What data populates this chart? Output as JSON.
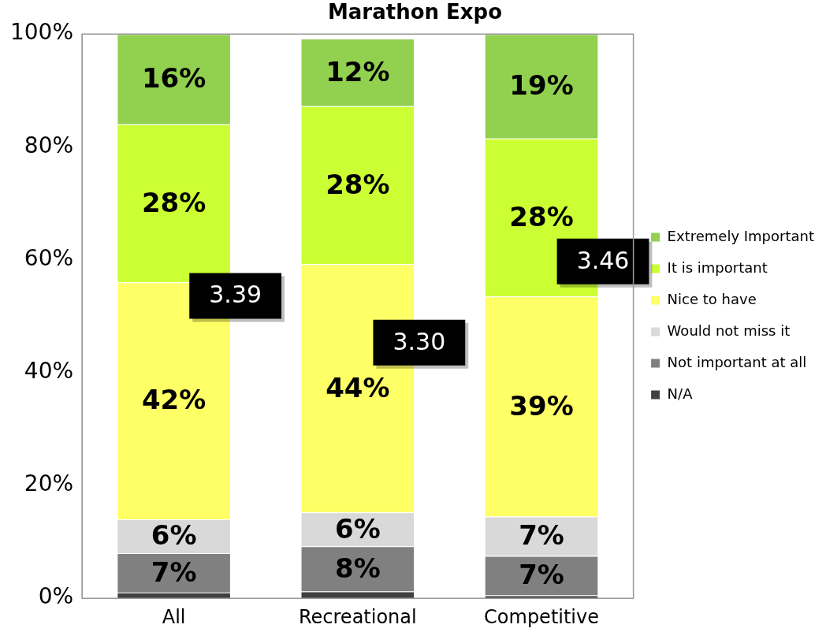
{
  "chart_data": {
    "type": "bar",
    "title": "Marathon Expo",
    "stacked": true,
    "categories": [
      "All",
      "Recreational",
      "Competitive"
    ],
    "series": [
      {
        "name": "N/A",
        "color": "#404040",
        "values": [
          1,
          1.2,
          0.5
        ],
        "value_labels": [
          null,
          null,
          null
        ]
      },
      {
        "name": "Not important at all",
        "color": "#808080",
        "values": [
          7,
          8,
          7
        ],
        "value_labels": [
          "7%",
          "8%",
          "7%"
        ]
      },
      {
        "name": "Would not miss it",
        "color": "#d9d9d9",
        "values": [
          6,
          6,
          7
        ],
        "value_labels": [
          "6%",
          "6%",
          "7%"
        ]
      },
      {
        "name": "Nice to have",
        "color": "#ffff66",
        "values": [
          42,
          44,
          39
        ],
        "value_labels": [
          "42%",
          "44%",
          "39%"
        ]
      },
      {
        "name": "It is important",
        "color": "#ccff33",
        "values": [
          28,
          28,
          28
        ],
        "value_labels": [
          "28%",
          "28%",
          "28%"
        ]
      },
      {
        "name": "Extremely Important",
        "color": "#92d050",
        "values": [
          16,
          12,
          18.5
        ],
        "value_labels": [
          "16%",
          "12%",
          "19%"
        ]
      }
    ],
    "ylim": [
      0,
      100
    ],
    "yticks": [
      {
        "value": 0,
        "label": "0%"
      },
      {
        "value": 20,
        "label": "20%"
      },
      {
        "value": 40,
        "label": "40%"
      },
      {
        "value": 60,
        "label": "60%"
      },
      {
        "value": 80,
        "label": "80%"
      },
      {
        "value": 100,
        "label": "100%"
      }
    ],
    "grid": false,
    "legend": "right",
    "annotations": [
      "3.39",
      "3.30",
      "3.46"
    ]
  }
}
